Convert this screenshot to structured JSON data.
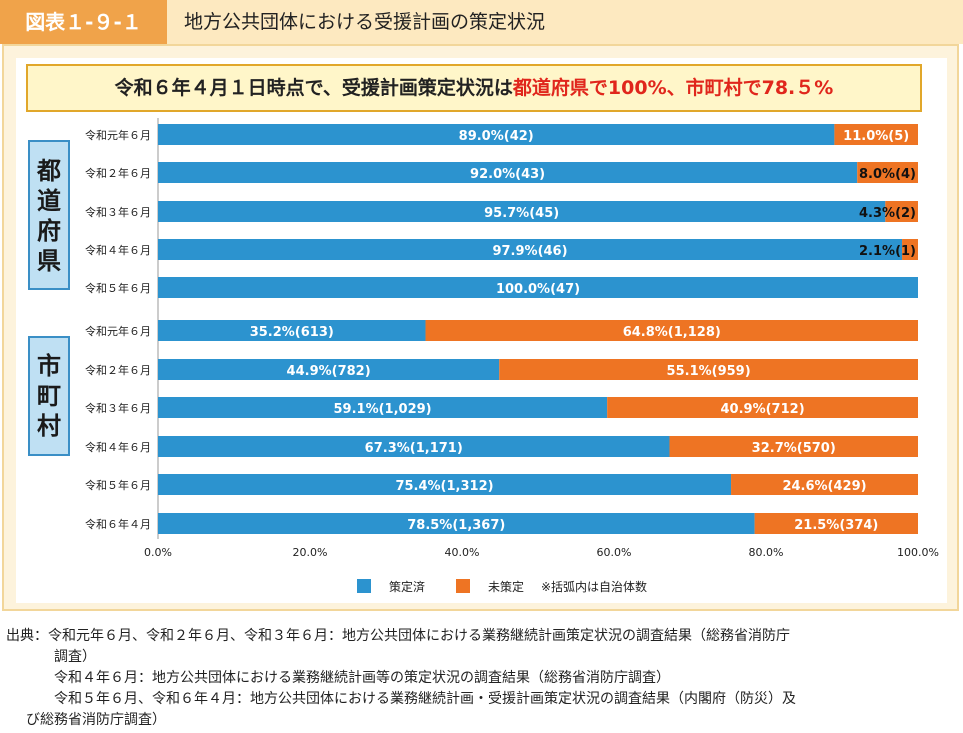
{
  "header": {
    "figure_label": "図表１-９-１",
    "title": "地方公共団体における受援計画の策定状況"
  },
  "banner": {
    "text_plain": "令和６年４月１日時点で、受援計画策定状況は",
    "text_highlight": "都道府県で100%、市町村で78.５%"
  },
  "groups": {
    "prefectures": "都道府県",
    "municipalities": "市町村"
  },
  "colors": {
    "completed": "#2c93cf",
    "not_completed": "#ee7423"
  },
  "chart_data": {
    "type": "bar",
    "orientation": "horizontal",
    "stacked": true,
    "x_range": [
      0,
      100
    ],
    "x_ticks": [
      "0.0%",
      "20.0%",
      "40.0%",
      "60.0%",
      "80.0%",
      "100.0%"
    ],
    "legend": {
      "position": "bottom",
      "entries": [
        "策定済",
        "未策定"
      ],
      "note": "※括弧内は自治体数"
    },
    "series": [
      {
        "name": "策定済"
      },
      {
        "name": "未策定"
      }
    ],
    "rows": [
      {
        "group": "都道府県",
        "category": "令和元年６月",
        "completed": 89.0,
        "not_completed": 11.0,
        "completed_label": "89.0%(42)",
        "not_completed_label": "11.0%(5)"
      },
      {
        "group": "都道府県",
        "category": "令和２年６月",
        "completed": 92.0,
        "not_completed": 8.0,
        "completed_label": "92.0%(43)",
        "not_completed_label": "8.0%(4)"
      },
      {
        "group": "都道府県",
        "category": "令和３年６月",
        "completed": 95.7,
        "not_completed": 4.3,
        "completed_label": "95.7%(45)",
        "not_completed_label": "4.3%(2)"
      },
      {
        "group": "都道府県",
        "category": "令和４年６月",
        "completed": 97.9,
        "not_completed": 2.1,
        "completed_label": "97.9%(46)",
        "not_completed_label": "2.1%(1)"
      },
      {
        "group": "都道府県",
        "category": "令和５年６月",
        "completed": 100.0,
        "not_completed": 0,
        "completed_label": "100.0%(47)",
        "not_completed_label": ""
      },
      {
        "group": "市町村",
        "category": "令和元年６月",
        "completed": 35.2,
        "not_completed": 64.8,
        "completed_label": "35.2%(613)",
        "not_completed_label": "64.8%(1,128)"
      },
      {
        "group": "市町村",
        "category": "令和２年６月",
        "completed": 44.9,
        "not_completed": 55.1,
        "completed_label": "44.9%(782)",
        "not_completed_label": "55.1%(959)"
      },
      {
        "group": "市町村",
        "category": "令和３年６月",
        "completed": 59.1,
        "not_completed": 40.9,
        "completed_label": "59.1%(1,029)",
        "not_completed_label": "40.9%(712)"
      },
      {
        "group": "市町村",
        "category": "令和４年６月",
        "completed": 67.3,
        "not_completed": 32.7,
        "completed_label": "67.3%(1,171)",
        "not_completed_label": "32.7%(570)"
      },
      {
        "group": "市町村",
        "category": "令和５年６月",
        "completed": 75.4,
        "not_completed": 24.6,
        "completed_label": "75.4%(1,312)",
        "not_completed_label": "24.6%(429)"
      },
      {
        "group": "市町村",
        "category": "令和６年４月",
        "completed": 78.5,
        "not_completed": 21.5,
        "completed_label": "78.5%(1,367)",
        "not_completed_label": "21.5%(374)"
      }
    ]
  },
  "source": {
    "lines": [
      "出典：令和元年６月、令和２年６月、令和３年６月：地方公共団体における業務継続計画策定状況の調査結果（総務省消防庁",
      "調査）",
      "令和４年６月：地方公共団体における業務継続計画等の策定状況の調査結果（総務省消防庁調査）",
      "令和５年６月、令和６年４月：地方公共団体における業務継続計画・受援計画策定状況の調査結果（内閣府（防災）及",
      "び総務省消防庁調査）"
    ]
  }
}
